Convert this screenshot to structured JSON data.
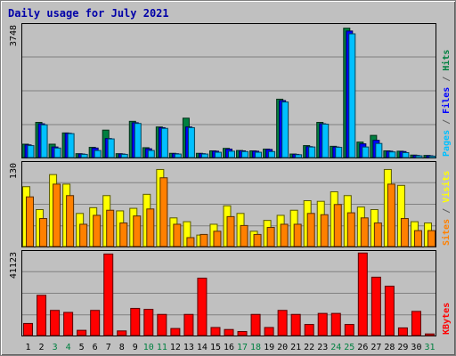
{
  "chart_data": {
    "type": "bar",
    "title": "Daily usage for July 2021",
    "categories": [
      "1",
      "2",
      "3",
      "4",
      "5",
      "6",
      "7",
      "8",
      "9",
      "10",
      "11",
      "12",
      "13",
      "14",
      "15",
      "16",
      "17",
      "18",
      "19",
      "20",
      "21",
      "22",
      "23",
      "24",
      "25",
      "26",
      "27",
      "28",
      "29",
      "30",
      "31"
    ],
    "weekend_days": [
      "3",
      "4",
      "10",
      "11",
      "17",
      "18",
      "24",
      "25",
      "31"
    ],
    "panels": [
      {
        "id": "hits-files-pages",
        "axis_max": 3748,
        "axis_max_label": "3748",
        "ylim": [
          0,
          3748
        ],
        "series": [
          {
            "name": "Hits",
            "color": "#008040",
            "values": [
              380,
              1000,
              380,
              700,
              110,
              290,
              780,
              110,
              1030,
              280,
              870,
              120,
              1120,
              120,
              190,
              260,
              200,
              190,
              240,
              1660,
              100,
              340,
              1000,
              320,
              3680,
              440,
              630,
              190,
              180,
              70,
              60
            ]
          },
          {
            "name": "Files",
            "color": "#0000ff",
            "values": [
              360,
              960,
              300,
              690,
              100,
              270,
              540,
              100,
              990,
              250,
              850,
              110,
              870,
              110,
              180,
              240,
              190,
              180,
              230,
              1620,
              90,
              310,
              960,
              300,
              3600,
              390,
              490,
              180,
              170,
              60,
              50
            ]
          },
          {
            "name": "Pages",
            "color": "#00c0ff",
            "values": [
              340,
              930,
              270,
              680,
              90,
              200,
              530,
              90,
              970,
              200,
              830,
              100,
              850,
              100,
              150,
              180,
              170,
              150,
              170,
              1580,
              80,
              300,
              950,
              290,
              3520,
              300,
              400,
              160,
              140,
              50,
              40
            ]
          }
        ],
        "legend_text": [
          "Pages",
          " / ",
          "Files",
          " / ",
          "Hits"
        ],
        "legend_colors": [
          "#00c0ff",
          "#606060",
          "#0000ff",
          "#606060",
          "#008040"
        ]
      },
      {
        "id": "visits-sites",
        "axis_max": 130,
        "axis_max_label": "130",
        "ylim": [
          0,
          130
        ],
        "series": [
          {
            "name": "Visits",
            "color": "#ffff00",
            "values": [
              94,
              58,
              113,
              98,
              52,
              61,
              80,
              56,
              60,
              82,
              121,
              45,
              39,
              18,
              35,
              64,
              52,
              24,
              41,
              49,
              57,
              72,
              71,
              86,
              80,
              62,
              58,
              121,
              96,
              39,
              37
            ]
          },
          {
            "name": "Sites",
            "color": "#ff8000",
            "values": [
              78,
              44,
              98,
              80,
              35,
              49,
              57,
              37,
              48,
              59,
              108,
              35,
              14,
              19,
              24,
              47,
              33,
              19,
              30,
              35,
              35,
              52,
              50,
              66,
              53,
              45,
              37,
              98,
              44,
              25,
              25
            ]
          }
        ],
        "legend_text": [
          "Sites",
          " / ",
          "Visits"
        ],
        "legend_colors": [
          "#ff8000",
          "#606060",
          "#ffff00"
        ]
      },
      {
        "id": "kbytes",
        "axis_max": 41123,
        "axis_max_label": "41123",
        "ylim": [
          0,
          41123
        ],
        "series": [
          {
            "name": "KBytes",
            "color": "#ff0000",
            "values": [
              6000,
              20000,
              12500,
              11500,
              2600,
              12500,
              40500,
              2300,
              13500,
              13000,
              10500,
              3500,
              10500,
              28500,
              4000,
              3000,
              2000,
              10500,
              4000,
              12500,
              10500,
              5500,
              11000,
              11000,
              5500,
              41000,
              29000,
              24500,
              3800,
              12000,
              800
            ]
          }
        ],
        "legend_text": [
          "KBytes"
        ],
        "legend_colors": [
          "#ff0000"
        ]
      }
    ]
  }
}
